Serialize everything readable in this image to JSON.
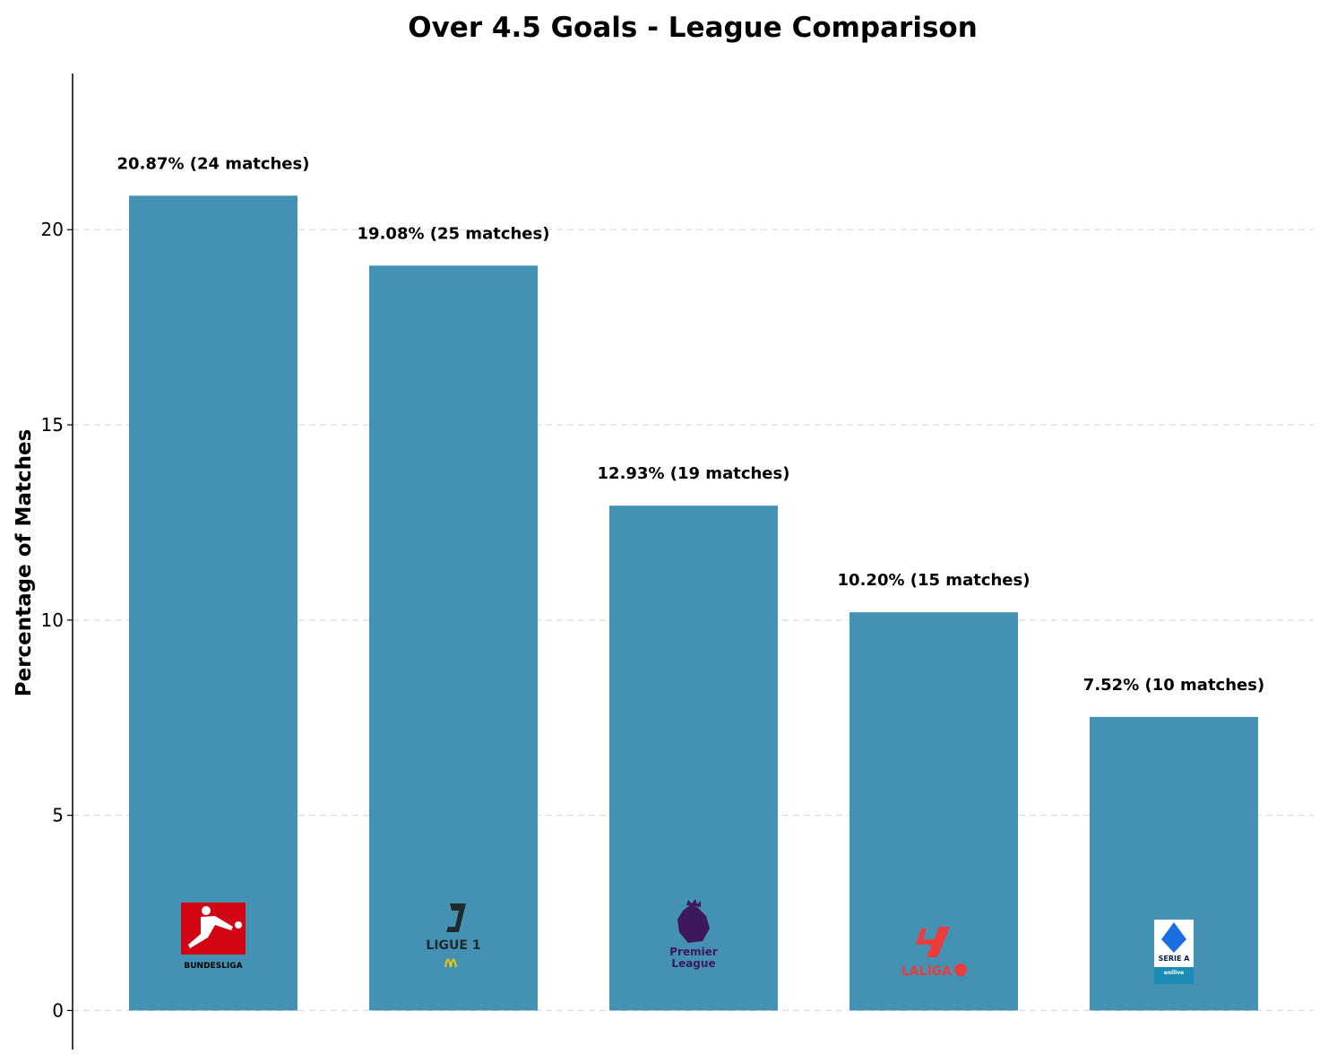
{
  "chart_data": {
    "type": "bar",
    "title": "Over 4.5 Goals - League Comparison",
    "xlabel": "",
    "ylabel": "Percentage of Matches",
    "categories": [
      "Bundesliga",
      "Ligue 1",
      "Premier League",
      "LaLiga",
      "Serie A"
    ],
    "values": [
      20.87,
      19.08,
      12.93,
      10.2,
      7.52
    ],
    "bar_labels": [
      "20.87% (24 matches)",
      "19.08% (25 matches)",
      "12.93% (19 matches)",
      "10.20% (15 matches)",
      "7.52% (10 matches)"
    ],
    "logo_texts": [
      [
        "BUNDESLIGA"
      ],
      [
        "LIGUE 1"
      ],
      [
        "Premier",
        "League"
      ],
      [
        "LALIGA"
      ],
      [
        "SERIE A",
        "enilive"
      ]
    ],
    "yticks": [
      "0",
      "5",
      "10",
      "15",
      "20"
    ],
    "ylim": [
      -1,
      24
    ],
    "grid": true,
    "bar_color": "#4392b4"
  }
}
